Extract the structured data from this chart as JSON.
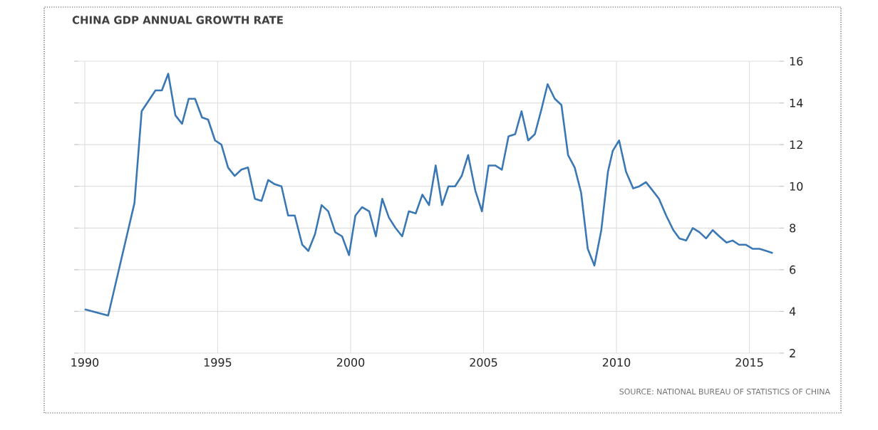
{
  "chart_data": {
    "type": "line",
    "title": "CHINA GDP ANNUAL GROWTH RATE",
    "annotations": [
      "SOURCE: NATIONAL BUREAU OF STATISTICS OF CHINA"
    ],
    "x": [
      1990.0,
      1990.88,
      1991.87,
      1992.14,
      1992.66,
      1992.9,
      1993.14,
      1993.41,
      1993.66,
      1993.91,
      1994.15,
      1994.41,
      1994.64,
      1994.9,
      1995.14,
      1995.39,
      1995.64,
      1995.89,
      1996.14,
      1996.4,
      1996.65,
      1996.9,
      1997.15,
      1997.4,
      1997.65,
      1997.9,
      1998.18,
      1998.41,
      1998.66,
      1998.91,
      1999.16,
      1999.42,
      1999.68,
      1999.94,
      2000.18,
      2000.43,
      2000.7,
      2000.95,
      2001.19,
      2001.44,
      2001.69,
      2001.94,
      2002.19,
      2002.45,
      2002.7,
      2002.95,
      2003.2,
      2003.44,
      2003.68,
      2003.93,
      2004.18,
      2004.42,
      2004.69,
      2004.94,
      2005.19,
      2005.44,
      2005.69,
      2005.94,
      2006.19,
      2006.43,
      2006.68,
      2006.93,
      2007.18,
      2007.41,
      2007.68,
      2007.93,
      2008.18,
      2008.43,
      2008.67,
      2008.92,
      2009.17,
      2009.43,
      2009.68,
      2009.86,
      2010.1,
      2010.36,
      2010.63,
      2010.86,
      2011.11,
      2011.36,
      2011.6,
      2011.87,
      2012.14,
      2012.37,
      2012.62,
      2012.87,
      2013.12,
      2013.37,
      2013.62,
      2013.87,
      2014.14,
      2014.37,
      2014.61,
      2014.86,
      2015.13,
      2015.38,
      2015.64,
      2015.88
    ],
    "series": [
      {
        "color": "#3a78b5",
        "values": [
          4.1,
          3.8,
          9.2,
          13.6,
          14.6,
          14.6,
          15.4,
          13.4,
          13.0,
          14.2,
          14.2,
          13.3,
          13.2,
          12.2,
          12.0,
          10.9,
          10.5,
          10.8,
          10.9,
          9.4,
          9.3,
          10.3,
          10.1,
          10.0,
          8.6,
          8.6,
          7.2,
          6.9,
          7.7,
          9.1,
          8.8,
          7.8,
          7.6,
          6.7,
          8.6,
          9.0,
          8.8,
          7.6,
          9.4,
          8.5,
          8.0,
          7.6,
          8.8,
          8.7,
          9.6,
          9.1,
          11.0,
          9.1,
          10.0,
          10.0,
          10.5,
          11.5,
          9.8,
          8.8,
          11.0,
          11.0,
          10.8,
          12.4,
          12.5,
          13.6,
          12.2,
          12.5,
          13.7,
          14.9,
          14.2,
          13.9,
          11.5,
          10.9,
          9.7,
          7.0,
          6.2,
          7.9,
          10.7,
          11.7,
          12.2,
          10.7,
          9.9,
          10.0,
          10.2,
          9.8,
          9.4,
          8.6,
          7.9,
          7.5,
          7.4,
          8.0,
          7.8,
          7.5,
          7.9,
          7.6,
          7.3,
          7.4,
          7.2,
          7.2,
          7.0,
          7.0,
          6.9,
          6.8
        ]
      }
    ],
    "xlim": [
      1989.6,
      2016.3
    ],
    "ylim": [
      2,
      16
    ],
    "xticks": [
      1990,
      1995,
      2000,
      2005,
      2010,
      2015
    ],
    "yticks": [
      2,
      4,
      6,
      8,
      10,
      12,
      14,
      16
    ],
    "grid": true
  }
}
